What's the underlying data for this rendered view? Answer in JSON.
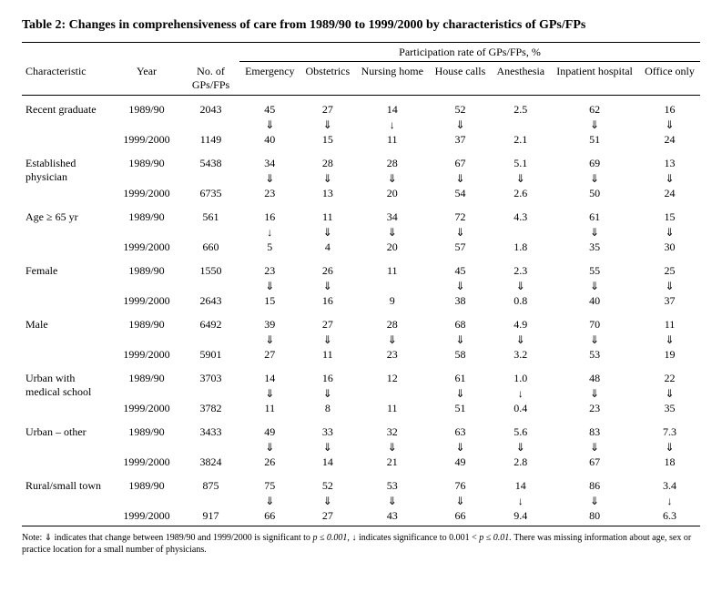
{
  "title": "Table 2: Changes in comprehensiveness of care from 1989/90 to 1999/2000 by characteristics of GPs/FPs",
  "spanner": "Participation rate of GPs/FPs, %",
  "headers": {
    "characteristic": "Characteristic",
    "year": "Year",
    "n": "No. of GPs/FPs",
    "emergency": "Emergency",
    "obstetrics": "Obstetrics",
    "nursing": "Nursing home",
    "house": "House calls",
    "anesthesia": "Anesthesia",
    "inpatient": "Inpatient hospital",
    "office": "Office only"
  },
  "arrows": {
    "d": "⇓",
    "s": "↓"
  },
  "groups": [
    {
      "label": "Recent graduate",
      "y1": "1989/90",
      "n1": "2043",
      "v1": [
        "45",
        "27",
        "14",
        "52",
        "2.5",
        "62",
        "16"
      ],
      "a": [
        "d",
        "d",
        "s",
        "d",
        "",
        "d",
        "d"
      ],
      "y2": "1999/2000",
      "n2": "1149",
      "v2": [
        "40",
        "15",
        "11",
        "37",
        "2.1",
        "51",
        "24"
      ]
    },
    {
      "label": "Established physician",
      "y1": "1989/90",
      "n1": "5438",
      "v1": [
        "34",
        "28",
        "28",
        "67",
        "5.1",
        "69",
        "13"
      ],
      "a": [
        "d",
        "d",
        "d",
        "d",
        "d",
        "d",
        "d"
      ],
      "y2": "1999/2000",
      "n2": "6735",
      "v2": [
        "23",
        "13",
        "20",
        "54",
        "2.6",
        "50",
        "24"
      ]
    },
    {
      "label": "Age ≥ 65 yr",
      "y1": "1989/90",
      "n1": "561",
      "v1": [
        "16",
        "11",
        "34",
        "72",
        "4.3",
        "61",
        "15"
      ],
      "a": [
        "s",
        "d",
        "d",
        "d",
        "",
        "d",
        "d"
      ],
      "y2": "1999/2000",
      "n2": "660",
      "v2": [
        "5",
        "4",
        "20",
        "57",
        "1.8",
        "35",
        "30"
      ]
    },
    {
      "label": "Female",
      "y1": "1989/90",
      "n1": "1550",
      "v1": [
        "23",
        "26",
        "11",
        "45",
        "2.3",
        "55",
        "25"
      ],
      "a": [
        "d",
        "d",
        "",
        "d",
        "d",
        "d",
        "d"
      ],
      "y2": "1999/2000",
      "n2": "2643",
      "v2": [
        "15",
        "16",
        "9",
        "38",
        "0.8",
        "40",
        "37"
      ]
    },
    {
      "label": "Male",
      "y1": "1989/90",
      "n1": "6492",
      "v1": [
        "39",
        "27",
        "28",
        "68",
        "4.9",
        "70",
        "11"
      ],
      "a": [
        "d",
        "d",
        "d",
        "d",
        "d",
        "d",
        "d"
      ],
      "y2": "1999/2000",
      "n2": "5901",
      "v2": [
        "27",
        "11",
        "23",
        "58",
        "3.2",
        "53",
        "19"
      ]
    },
    {
      "label": "Urban with medical school",
      "y1": "1989/90",
      "n1": "3703",
      "v1": [
        "14",
        "16",
        "12",
        "61",
        "1.0",
        "48",
        "22"
      ],
      "a": [
        "d",
        "d",
        "",
        "d",
        "s",
        "d",
        "d"
      ],
      "y2": "1999/2000",
      "n2": "3782",
      "v2": [
        "11",
        "8",
        "11",
        "51",
        "0.4",
        "23",
        "35"
      ]
    },
    {
      "label": "Urban – other",
      "y1": "1989/90",
      "n1": "3433",
      "v1": [
        "49",
        "33",
        "32",
        "63",
        "5.6",
        "83",
        "7.3"
      ],
      "a": [
        "d",
        "d",
        "d",
        "d",
        "d",
        "d",
        "d"
      ],
      "y2": "1999/2000",
      "n2": "3824",
      "v2": [
        "26",
        "14",
        "21",
        "49",
        "2.8",
        "67",
        "18"
      ]
    },
    {
      "label": "Rural/small town",
      "y1": "1989/90",
      "n1": "875",
      "v1": [
        "75",
        "52",
        "53",
        "76",
        "14",
        "86",
        "3.4"
      ],
      "a": [
        "d",
        "d",
        "d",
        "d",
        "s",
        "d",
        "s"
      ],
      "y2": "1999/2000",
      "n2": "917",
      "v2": [
        "66",
        "27",
        "43",
        "66",
        "9.4",
        "80",
        "6.3"
      ]
    }
  ],
  "note_prefix": "Note: ",
  "note_mid1": " indicates that change between 1989/90 and 1999/2000 is significant to ",
  "note_p1": "p ≤ 0.001, ",
  "note_mid2": " indicates significance to 0.001 < ",
  "note_p2": "p ≤ 0.01. ",
  "note_tail": "There was missing information about age, sex or practice location for a small number of physicians."
}
